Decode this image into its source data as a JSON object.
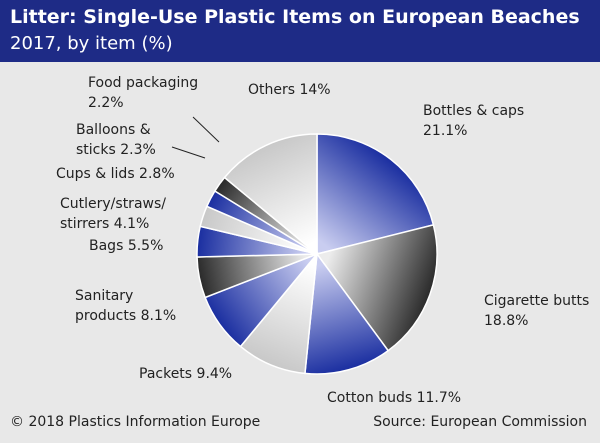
{
  "header": {
    "title": "Litter: Single-Use Plastic Items on European Beaches",
    "subtitle": "2017, by item (%)"
  },
  "footer": {
    "copyright": "© 2018 Plastics Information Europe",
    "source": "Source: European Commission"
  },
  "colors": {
    "header_bg": "#1e2b86",
    "background": "#e8e8e8",
    "blue_dark": "#1a2ea0",
    "blue_light": "#c9cdf0",
    "gray_dark": "#2a2a2a",
    "gray_light": "#ececec"
  },
  "chart_data": {
    "type": "pie",
    "title": "Litter: Single-Use Plastic Items on European Beaches",
    "subtitle": "2017, by item (%)",
    "slices": [
      {
        "label": "Bottles & caps",
        "value": 21.1,
        "display": [
          "Bottles & caps",
          "21.1%"
        ],
        "fill": "blue"
      },
      {
        "label": "Cigarette butts",
        "value": 18.8,
        "display": [
          "Cigarette butts",
          "18.8%"
        ],
        "fill": "gray"
      },
      {
        "label": "Cotton buds",
        "value": 11.7,
        "display": [
          "Cotton buds 11.7%"
        ],
        "fill": "blue"
      },
      {
        "label": "Packets",
        "value": 9.4,
        "display": [
          "Packets 9.4%"
        ],
        "fill": "light"
      },
      {
        "label": "Sanitary products",
        "value": 8.1,
        "display": [
          "Sanitary",
          "products 8.1%"
        ],
        "fill": "blue"
      },
      {
        "label": "Bags",
        "value": 5.5,
        "display": [
          "Bags 5.5%"
        ],
        "fill": "gray"
      },
      {
        "label": "Cutlery/straws/stirrers",
        "value": 4.1,
        "display": [
          "Cutlery/straws/",
          "stirrers 4.1%"
        ],
        "fill": "blue"
      },
      {
        "label": "Cups & lids",
        "value": 2.8,
        "display": [
          "Cups & lids 2.8%"
        ],
        "fill": "light"
      },
      {
        "label": "Balloons & sticks",
        "value": 2.3,
        "display": [
          "Balloons &",
          "sticks 2.3%"
        ],
        "fill": "blue"
      },
      {
        "label": "Food packaging",
        "value": 2.2,
        "display": [
          "Food packaging",
          "2.2%"
        ],
        "fill": "gray"
      },
      {
        "label": "Others",
        "value": 14.0,
        "display": [
          "Others 14%"
        ],
        "fill": "light"
      }
    ]
  }
}
